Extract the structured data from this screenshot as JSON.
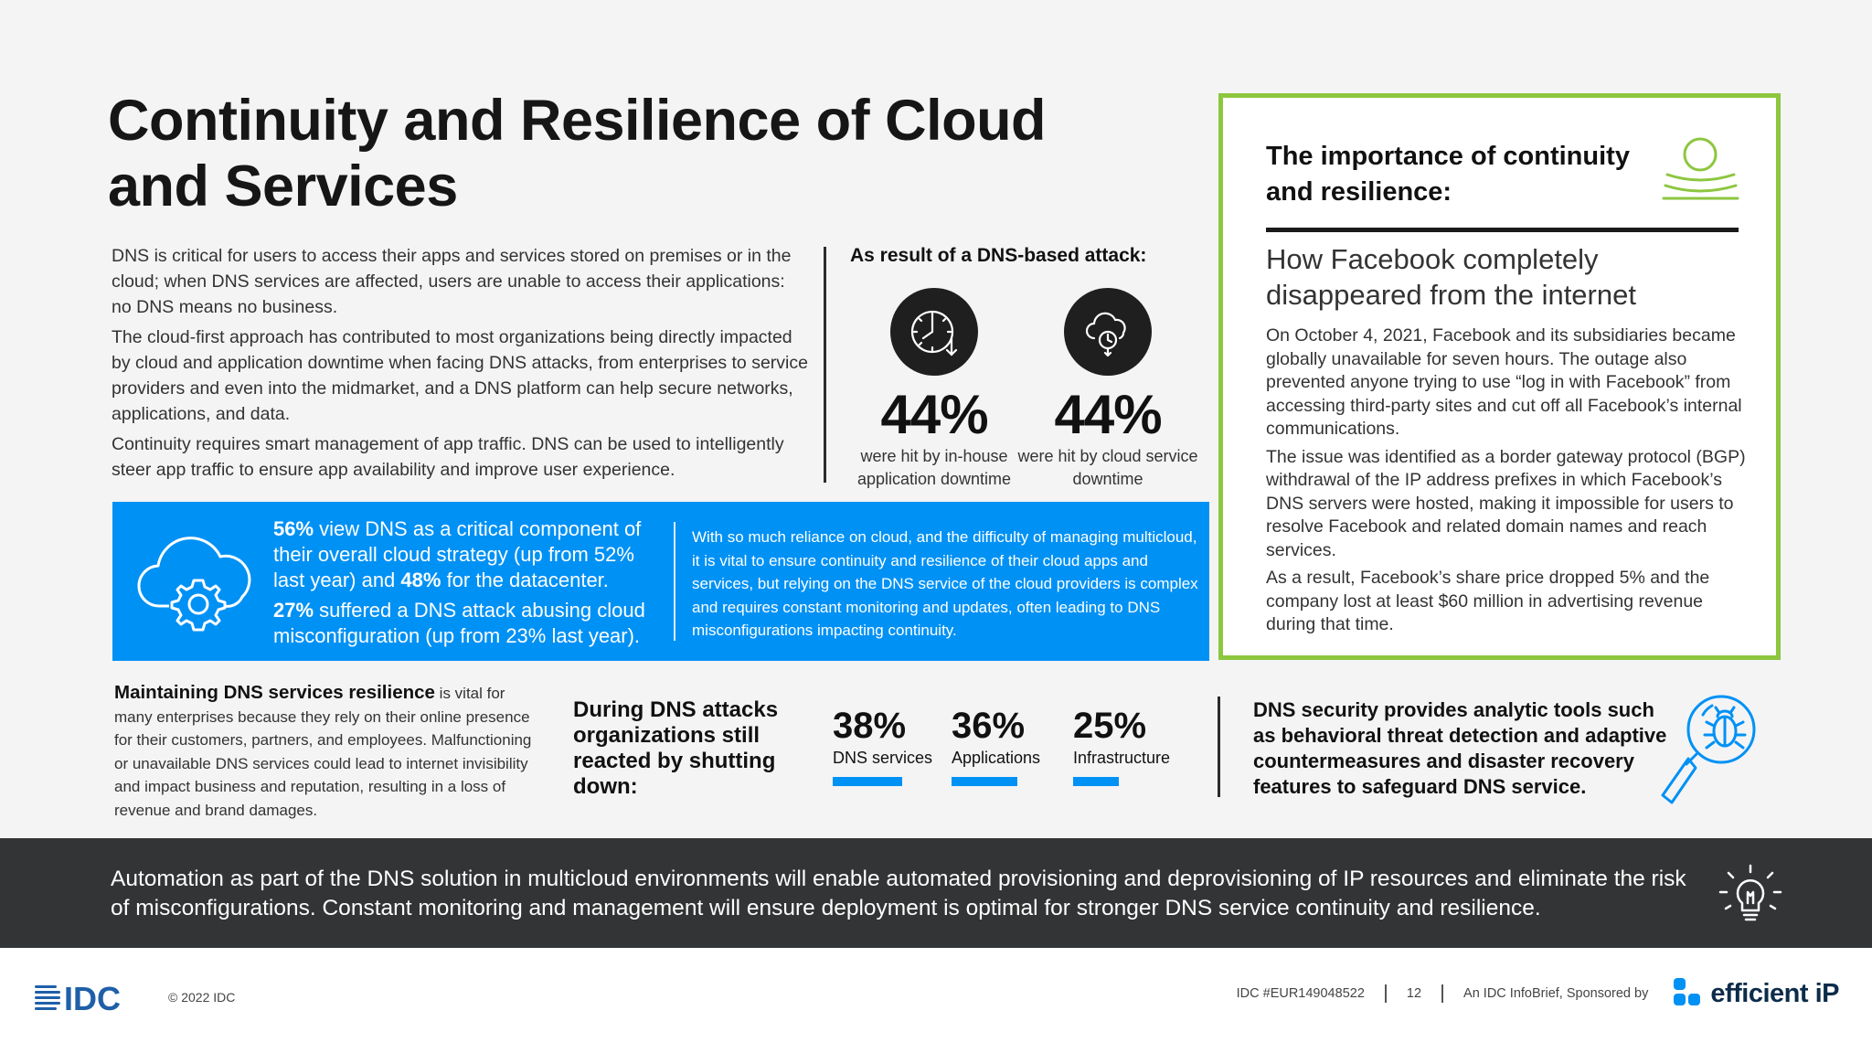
{
  "page": {
    "title": "Continuity and Resilience of Cloud and Services"
  },
  "intro": {
    "p1": "DNS is critical for users to access their apps and services stored on premises or in the cloud; when DNS services are affected, users are unable to access their applications: no DNS means no business.",
    "p2": "The cloud-first approach has contributed to most organizations being directly impacted by cloud and application downtime when facing DNS attacks, from enterprises to service providers and even into the midmarket, and a DNS platform can help secure networks, applications, and data.",
    "p3": "Continuity requires smart management of app traffic. DNS can be used to intelligently steer app traffic to ensure app availability and improve user experience."
  },
  "attack": {
    "heading": "As result of a DNS-based attack:",
    "stats": [
      {
        "value": "44%",
        "label": "were hit by in-house application downtime",
        "icon": "clock-downtime-icon"
      },
      {
        "value": "44%",
        "label": "were hit by cloud service downtime",
        "icon": "cloud-downtime-icon"
      }
    ]
  },
  "blue_band": {
    "icon": "cloud-gear-icon",
    "s1_pct": "56%",
    "s1_text": " view DNS as a critical component of their overall cloud strategy (up from 52% last year) and ",
    "s1_pct2": "48%",
    "s1_tail": " for the datacenter.",
    "s2_pct": "27%",
    "s2_text": " suffered a DNS attack abusing cloud misconfiguration (up from 23% last year).",
    "right_text": "With so much reliance on cloud, and the difficulty of managing multicloud, it is vital to ensure continuity and resilience of their cloud apps and services, but relying on the DNS service of the cloud providers is complex and requires constant monitoring and updates, often leading to DNS misconfigurations impacting continuity.",
    "accent_color": "#0091f5"
  },
  "sidebar": {
    "heading": "The importance of continuity and resilience:",
    "icon": "sunrise-waves-icon",
    "subheading": "How Facebook completely disappeared from the internet",
    "p1": "On October 4, 2021, Facebook and its subsidiaries became globally unavailable for seven hours. The outage also prevented anyone trying to use “log in with Facebook” from accessing third-party sites and cut off all Facebook’s internal communications.",
    "p2": "The issue was identified as a border gateway protocol (BGP) withdrawal of the IP address prefixes in which Facebook’s DNS servers were hosted, making it impossible for users to resolve Facebook and related domain names and reach services.",
    "p3": "As a result, Facebook’s share price dropped 5% and the company lost at least $60 million in advertising revenue during that time.",
    "border_color": "#8dc63f"
  },
  "maintaining": {
    "lead": "Maintaining DNS services resilience",
    "rest": " is vital for many enterprises because they rely on their online presence for their customers, partners, and employees. Malfunctioning or unavailable DNS services could lead to internet invisibility and impact business and reputation, resulting in a loss of revenue and brand damages."
  },
  "shutdown": {
    "heading": "During DNS attacks organizations still reacted by shutting down:",
    "items": [
      {
        "value": "38%",
        "label": "DNS services",
        "fraction": 0.38
      },
      {
        "value": "36%",
        "label": "Applications",
        "fraction": 0.36
      },
      {
        "value": "25%",
        "label": "Infrastructure",
        "fraction": 0.25
      }
    ]
  },
  "security": {
    "text": "DNS security provides analytic tools such as behavioral threat detection and adaptive countermeasures and disaster recovery features to safeguard DNS service.",
    "icon": "magnifier-bug-icon"
  },
  "automation": {
    "text": "Automation as part of the DNS solution in multicloud environments will enable automated provisioning and deprovisioning of IP resources and eliminate the risk of misconfigurations. Constant monitoring and management will ensure deployment is optimal for stronger DNS service continuity and resilience.",
    "icon": "lightbulb-icon"
  },
  "footer": {
    "idc_logo": "IDC",
    "copyright": "© 2022 IDC",
    "doc_id": "IDC #EUR149048522",
    "page_number": "12",
    "sponsor": "An IDC InfoBrief, Sponsored by",
    "sponsor_logo": "efficient iP"
  }
}
